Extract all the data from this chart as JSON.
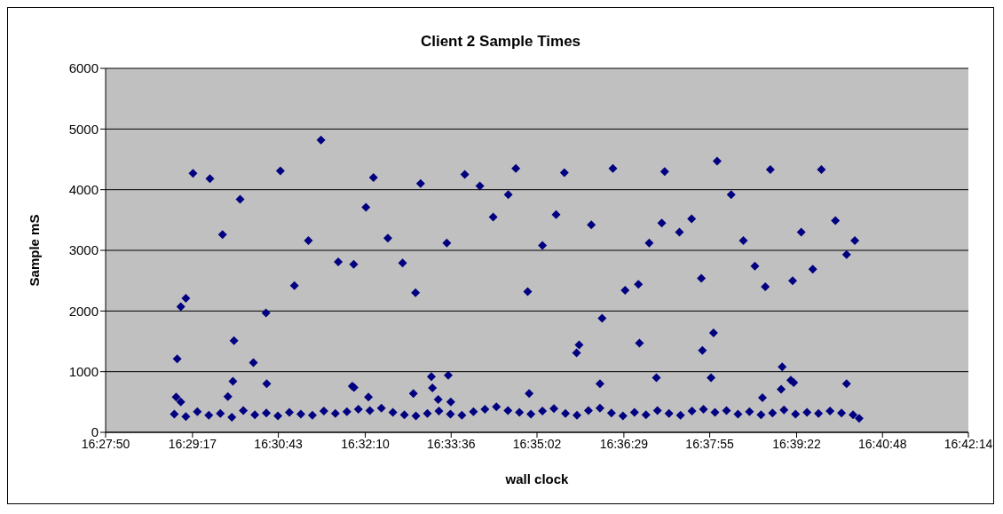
{
  "chart_data": {
    "type": "scatter",
    "title": "Client 2 Sample Times",
    "xlabel": "wall clock",
    "ylabel": "Sample mS",
    "xlim": [
      16.46389,
      16.70389
    ],
    "xticks": [
      {
        "value": 16.46389,
        "label": "16:27:50"
      },
      {
        "value": 16.48806,
        "label": "16:29:17"
      },
      {
        "value": 16.51194,
        "label": "16:30:43"
      },
      {
        "value": 16.53611,
        "label": "16:32:10"
      },
      {
        "value": 16.56,
        "label": "16:33:36"
      },
      {
        "value": 16.58389,
        "label": "16:35:02"
      },
      {
        "value": 16.60806,
        "label": "16:36:29"
      },
      {
        "value": 16.63194,
        "label": "16:37:55"
      },
      {
        "value": 16.65611,
        "label": "16:39:22"
      },
      {
        "value": 16.68,
        "label": "16:40:48"
      },
      {
        "value": 16.70389,
        "label": "16:42:14"
      }
    ],
    "ylim": [
      0,
      6000
    ],
    "yticks": [
      0,
      1000,
      2000,
      3000,
      4000,
      5000,
      6000
    ],
    "grid": "y",
    "marker": "diamond",
    "legend": false,
    "series": [
      {
        "color": "#000080",
        "x": [
          16.4838,
          16.4848,
          16.4862,
          16.4882,
          16.4929,
          16.4964,
          16.4996,
          16.5013,
          16.4993,
          16.4979,
          16.505,
          16.5085,
          16.5087,
          16.5125,
          16.5164,
          16.5203,
          16.5238,
          16.5286,
          16.5329,
          16.5325,
          16.533,
          16.5363,
          16.5384,
          16.537,
          16.5424,
          16.5465,
          16.5501,
          16.5515,
          16.5495,
          16.5545,
          16.5548,
          16.5564,
          16.5588,
          16.5592,
          16.5599,
          16.5638,
          16.568,
          16.5717,
          16.5759,
          16.578,
          16.5813,
          16.5817,
          16.4835,
          16.4848,
          16.5854,
          16.5915,
          16.5892,
          16.5949,
          16.5956,
          16.599,
          16.602,
          16.6014,
          16.605,
          16.6084,
          16.6121,
          16.6124,
          16.6151,
          16.6171,
          16.6186,
          16.6194,
          16.6235,
          16.6269,
          16.6296,
          16.6299,
          16.633,
          16.6323,
          16.634,
          16.6379,
          16.6413,
          16.6445,
          16.6474,
          16.6488,
          16.6521,
          16.6518,
          16.6545,
          16.6553,
          16.655,
          16.6574,
          16.6606,
          16.663,
          16.6669,
          16.67,
          16.6723,
          16.67,
          16.6466,
          16.483,
          16.4862,
          16.4894,
          16.4926,
          16.4958,
          16.499,
          16.5022,
          16.5054,
          16.5086,
          16.5118,
          16.515,
          16.5182,
          16.5214,
          16.5246,
          16.5278,
          16.531,
          16.5342,
          16.5374,
          16.5406,
          16.5438,
          16.547,
          16.5502,
          16.5534,
          16.5566,
          16.5598,
          16.563,
          16.5662,
          16.5694,
          16.5726,
          16.5758,
          16.579,
          16.5822,
          16.5854,
          16.5886,
          16.5918,
          16.595,
          16.5982,
          16.6014,
          16.6046,
          16.6078,
          16.611,
          16.6142,
          16.6174,
          16.6206,
          16.6238,
          16.627,
          16.6302,
          16.6334,
          16.6366,
          16.6398,
          16.643,
          16.6462,
          16.6494,
          16.6526,
          16.6558,
          16.659,
          16.6622,
          16.6654,
          16.6686,
          16.6718,
          16.6735
        ],
        "values": [
          1210,
          2070,
          2210,
          4270,
          4180,
          3260,
          1510,
          3840,
          840,
          590,
          1150,
          1970,
          800,
          4310,
          2420,
          3160,
          4820,
          2810,
          2770,
          760,
          740,
          3710,
          4200,
          580,
          3200,
          2790,
          2300,
          4100,
          640,
          920,
          730,
          540,
          3120,
          940,
          500,
          4250,
          4060,
          3550,
          3920,
          4350,
          2320,
          640,
          580,
          500,
          3080,
          4280,
          3590,
          1310,
          1440,
          3420,
          1880,
          800,
          4350,
          2340,
          2440,
          1470,
          3120,
          900,
          3450,
          4300,
          3300,
          3520,
          2540,
          1350,
          1640,
          900,
          4470,
          3920,
          3160,
          2740,
          2400,
          4330,
          1080,
          710,
          860,
          820,
          2500,
          3300,
          2690,
          4330,
          3490,
          2930,
          3160,
          800,
          570,
          300,
          260,
          340,
          280,
          310,
          250,
          360,
          290,
          320,
          270,
          330,
          300,
          280,
          350,
          310,
          340,
          380,
          360,
          400,
          330,
          290,
          270,
          310,
          350,
          300,
          280,
          340,
          380,
          420,
          360,
          330,
          300,
          350,
          390,
          310,
          280,
          360,
          400,
          320,
          270,
          330,
          290,
          360,
          310,
          280,
          350,
          380,
          330,
          360,
          300,
          340,
          290,
          320,
          370,
          300,
          330,
          310,
          350,
          320,
          290,
          230
        ]
      }
    ]
  }
}
